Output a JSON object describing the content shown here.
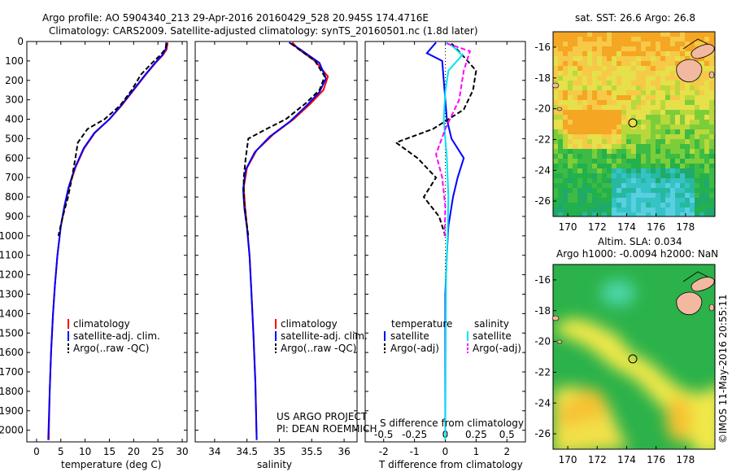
{
  "header": {
    "line1": "Argo profile: AO 5904340_213 29-Apr-2016 20160429_528 20.945S 174.4716E",
    "line2": "Climatology: CARS2009. Satellite-adjusted climatology: synTS_20160501.nc (1.8d later)"
  },
  "colors": {
    "clim": "#ff0000",
    "sat": "#0000ff",
    "argo": "#000000",
    "sal_sat": "#00e5ee",
    "sal_argo": "#ff00ff"
  },
  "chart_data": [
    {
      "type": "line",
      "id": "temperature",
      "xlabel": "temperature (deg C)",
      "xlim": [
        -2,
        31
      ],
      "xticks": [
        0,
        5,
        10,
        15,
        20,
        25,
        30
      ],
      "ylim": [
        0,
        2060
      ],
      "yticks": [
        0,
        100,
        200,
        300,
        400,
        500,
        600,
        700,
        800,
        900,
        1000,
        1100,
        1200,
        1300,
        1400,
        1500,
        1600,
        1700,
        1800,
        1900,
        2000
      ],
      "legend": {
        "placement": "lower-middle",
        "entries": [
          "climatology",
          "satellite-adj. clim.",
          "Argo(..raw -QC)"
        ]
      },
      "series": [
        {
          "name": "climatology",
          "style": "solid",
          "color": "clim",
          "points": [
            [
              27.0,
              5
            ],
            [
              26.8,
              40
            ],
            [
              26.0,
              70
            ],
            [
              24.5,
              110
            ],
            [
              22.5,
              170
            ],
            [
              20.0,
              250
            ],
            [
              17.5,
              330
            ],
            [
              15.0,
              400
            ],
            [
              12.0,
              470
            ],
            [
              9.8,
              550
            ],
            [
              8.0,
              650
            ],
            [
              6.7,
              750
            ],
            [
              5.8,
              850
            ],
            [
              5.0,
              950
            ],
            [
              4.3,
              1100
            ],
            [
              3.8,
              1250
            ],
            [
              3.4,
              1400
            ],
            [
              3.0,
              1600
            ],
            [
              2.7,
              1800
            ],
            [
              2.5,
              2050
            ]
          ]
        },
        {
          "name": "satellite-adj. clim.",
          "style": "solid",
          "color": "sat",
          "points": [
            [
              26.7,
              5
            ],
            [
              26.6,
              40
            ],
            [
              25.9,
              70
            ],
            [
              24.4,
              110
            ],
            [
              22.4,
              170
            ],
            [
              19.9,
              250
            ],
            [
              17.4,
              330
            ],
            [
              15.0,
              400
            ],
            [
              11.9,
              470
            ],
            [
              9.7,
              550
            ],
            [
              7.9,
              650
            ],
            [
              6.6,
              750
            ],
            [
              5.7,
              850
            ],
            [
              5.0,
              950
            ],
            [
              4.3,
              1100
            ],
            [
              3.8,
              1250
            ],
            [
              3.4,
              1400
            ],
            [
              3.0,
              1600
            ],
            [
              2.7,
              1800
            ],
            [
              2.4,
              2050
            ]
          ]
        },
        {
          "name": "Argo(..raw -QC)",
          "style": "dashed",
          "color": "argo",
          "points": [
            [
              26.9,
              10
            ],
            [
              26.5,
              40
            ],
            [
              25.5,
              70
            ],
            [
              23.8,
              110
            ],
            [
              21.5,
              170
            ],
            [
              19.6,
              250
            ],
            [
              17.2,
              330
            ],
            [
              14.0,
              400
            ],
            [
              10.5,
              450
            ],
            [
              8.5,
              520
            ],
            [
              8.0,
              600
            ],
            [
              7.3,
              700
            ],
            [
              6.5,
              800
            ],
            [
              5.4,
              900
            ],
            [
              4.5,
              1000
            ]
          ]
        }
      ]
    },
    {
      "type": "line",
      "id": "salinity",
      "xlabel": "salinity",
      "xlim": [
        33.7,
        36.2
      ],
      "xticks": [
        34,
        34.5,
        35,
        35.5,
        36
      ],
      "ylim": [
        0,
        2060
      ],
      "legend": {
        "placement": "lower-right",
        "entries": [
          "climatology",
          "satellite-adj. clim.",
          "Argo(..raw -QC)"
        ]
      },
      "annotation": [
        "US ARGO PROJECT",
        "PI: DEAN ROEMMICH"
      ],
      "series": [
        {
          "name": "climatology",
          "style": "solid",
          "color": "clim",
          "points": [
            [
              35.2,
              5
            ],
            [
              35.3,
              40
            ],
            [
              35.55,
              100
            ],
            [
              35.75,
              180
            ],
            [
              35.68,
              250
            ],
            [
              35.48,
              320
            ],
            [
              35.22,
              400
            ],
            [
              34.9,
              480
            ],
            [
              34.65,
              560
            ],
            [
              34.5,
              650
            ],
            [
              34.45,
              750
            ],
            [
              34.47,
              850
            ],
            [
              34.5,
              950
            ],
            [
              34.54,
              1100
            ],
            [
              34.57,
              1300
            ],
            [
              34.6,
              1500
            ],
            [
              34.63,
              1750
            ],
            [
              34.65,
              2050
            ]
          ]
        },
        {
          "name": "satellite-adj. clim.",
          "style": "solid",
          "color": "sat",
          "points": [
            [
              35.15,
              5
            ],
            [
              35.32,
              40
            ],
            [
              35.62,
              110
            ],
            [
              35.72,
              190
            ],
            [
              35.62,
              260
            ],
            [
              35.42,
              330
            ],
            [
              35.17,
              410
            ],
            [
              34.85,
              490
            ],
            [
              34.62,
              570
            ],
            [
              34.48,
              660
            ],
            [
              34.44,
              760
            ],
            [
              34.46,
              860
            ],
            [
              34.5,
              960
            ],
            [
              34.54,
              1110
            ],
            [
              34.57,
              1310
            ],
            [
              34.6,
              1510
            ],
            [
              34.63,
              1760
            ],
            [
              34.65,
              2050
            ]
          ]
        },
        {
          "name": "Argo(..raw -QC)",
          "style": "dashed",
          "color": "argo",
          "points": [
            [
              35.18,
              10
            ],
            [
              35.3,
              40
            ],
            [
              35.55,
              100
            ],
            [
              35.7,
              180
            ],
            [
              35.62,
              250
            ],
            [
              35.4,
              320
            ],
            [
              35.1,
              400
            ],
            [
              34.8,
              450
            ],
            [
              34.52,
              500
            ],
            [
              34.48,
              600
            ],
            [
              34.45,
              700
            ],
            [
              34.45,
              800
            ],
            [
              34.48,
              900
            ],
            [
              34.52,
              1000
            ]
          ]
        }
      ]
    },
    {
      "type": "line",
      "id": "difference",
      "xlabel": "T difference from climatology",
      "xlabel_top": "S difference from climatology",
      "xlim": [
        -2.6,
        2.6
      ],
      "xticks_T": [
        -2,
        -1,
        0,
        1,
        2
      ],
      "xticks_S": [
        -0.5,
        -0.25,
        0,
        0.25,
        0.5
      ],
      "xticks_S_labels": [
        "-0.5",
        "-0.25",
        "0",
        "0.25",
        "0.5"
      ],
      "ylim": [
        0,
        2060
      ],
      "legend_temperature": {
        "title": "temperature",
        "entries": [
          "satellite",
          "Argo(-adj)"
        ]
      },
      "legend_salinity": {
        "title": "salinity",
        "entries": [
          "satellite",
          "Argo(-adj)"
        ]
      },
      "series": [
        {
          "name": "T satellite",
          "style": "solid",
          "color": "sat",
          "points": [
            [
              -0.3,
              5
            ],
            [
              -0.6,
              60
            ],
            [
              -0.1,
              100
            ],
            [
              -0.05,
              200
            ],
            [
              0.0,
              300
            ],
            [
              0.05,
              400
            ],
            [
              0.2,
              500
            ],
            [
              0.6,
              600
            ],
            [
              0.4,
              700
            ],
            [
              0.25,
              800
            ],
            [
              0.1,
              950
            ],
            [
              0.05,
              1100
            ],
            [
              0.0,
              1300
            ],
            [
              0.0,
              2050
            ]
          ]
        },
        {
          "name": "T Argo(-adj)",
          "style": "dashed",
          "color": "argo",
          "points": [
            [
              0.2,
              10
            ],
            [
              0.5,
              60
            ],
            [
              1.0,
              150
            ],
            [
              0.9,
              250
            ],
            [
              0.6,
              350
            ],
            [
              -0.4,
              450
            ],
            [
              -1.6,
              520
            ],
            [
              -0.9,
              600
            ],
            [
              -0.3,
              700
            ],
            [
              -0.7,
              800
            ],
            [
              -0.2,
              900
            ],
            [
              0.0,
              1000
            ]
          ]
        },
        {
          "name": "S satellite",
          "style": "solid",
          "color": "sal_sat",
          "points": [
            [
              0.0,
              5
            ],
            [
              0.4,
              20
            ],
            [
              1.1,
              70
            ],
            [
              0.2,
              150
            ],
            [
              0.0,
              260
            ],
            [
              -0.1,
              400
            ],
            [
              0.1,
              600
            ],
            [
              0.2,
              800
            ],
            [
              0.15,
              1000
            ],
            [
              0.05,
              1200
            ],
            [
              0.0,
              2050
            ]
          ]
        },
        {
          "name": "S Argo(-adj)",
          "style": "dashed",
          "color": "sal_argo",
          "points": [
            [
              0.1,
              10
            ],
            [
              1.6,
              50
            ],
            [
              1.2,
              150
            ],
            [
              0.9,
              300
            ],
            [
              0.0,
              450
            ],
            [
              -0.6,
              580
            ],
            [
              -0.2,
              700
            ],
            [
              0.0,
              850
            ],
            [
              -0.05,
              1000
            ]
          ]
        }
      ]
    },
    {
      "type": "heatmap",
      "id": "sst_map",
      "title": "sat. SST: 26.6 Argo: 26.8",
      "xlim": [
        169,
        180
      ],
      "xticks": [
        170,
        172,
        174,
        176,
        178
      ],
      "ylim": [
        -27,
        -15
      ],
      "yticks": [
        -16,
        -18,
        -20,
        -22,
        -24,
        -26
      ],
      "float_position": [
        174.47,
        -20.95
      ]
    },
    {
      "type": "heatmap",
      "id": "sla_map",
      "title": "Altim. SLA: 0.034",
      "subtitle": "Argo h1000: -0.0094 h2000: NaN",
      "xlim": [
        169,
        180
      ],
      "xticks": [
        170,
        172,
        174,
        176,
        178
      ],
      "ylim": [
        -27,
        -15
      ],
      "yticks": [
        -16,
        -18,
        -20,
        -22,
        -24,
        -26
      ],
      "float_position": [
        174.47,
        -20.95
      ]
    }
  ],
  "watermark": "©IMOS 11-May-2016 20:55:11"
}
